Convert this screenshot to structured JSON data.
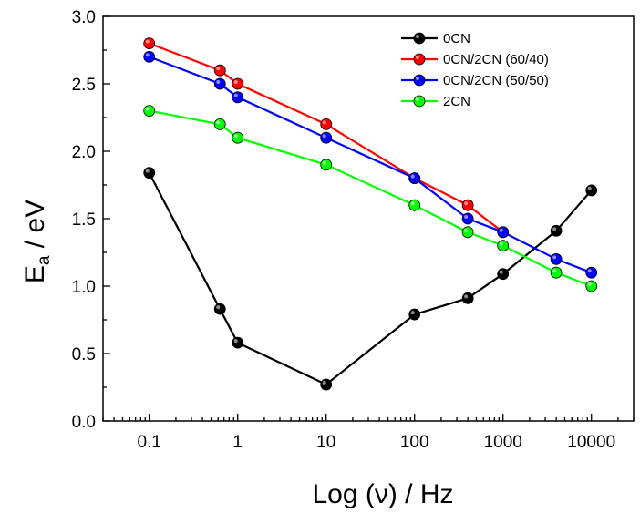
{
  "chart_data": {
    "type": "line",
    "xscale": "log",
    "xlim": [
      0.03,
      30000
    ],
    "ylim": [
      0.0,
      3.0
    ],
    "xticks": [
      {
        "value": 0.1,
        "label": "0.1"
      },
      {
        "value": 1,
        "label": "1"
      },
      {
        "value": 10,
        "label": "10"
      },
      {
        "value": 100,
        "label": "100"
      },
      {
        "value": 1000,
        "label": "1000"
      },
      {
        "value": 10000,
        "label": "10000"
      }
    ],
    "yticks": [
      {
        "value": 0.0,
        "label": "0.0"
      },
      {
        "value": 0.5,
        "label": "0.5"
      },
      {
        "value": 1.0,
        "label": "1.0"
      },
      {
        "value": 1.5,
        "label": "1.5"
      },
      {
        "value": 2.0,
        "label": "2.0"
      },
      {
        "value": 2.5,
        "label": "2.5"
      },
      {
        "value": 3.0,
        "label": "3.0"
      }
    ],
    "xlabel": "Log (ν) / Hz",
    "ylabel": {
      "main": "E",
      "sub": "a",
      "rest": " / eV"
    },
    "grid": false,
    "legend_position": "top-right",
    "series": [
      {
        "name": "0CN",
        "color": "#000000",
        "x": [
          0.1,
          0.63,
          1,
          10,
          100,
          400,
          1000,
          4000,
          10000
        ],
        "y": [
          1.84,
          0.83,
          0.58,
          0.27,
          0.79,
          0.91,
          1.09,
          1.41,
          1.71
        ]
      },
      {
        "name": "0CN/2CN (60/40)",
        "color": "#ff0000",
        "x": [
          0.1,
          0.63,
          1,
          10,
          100,
          400,
          1000
        ],
        "y": [
          2.8,
          2.6,
          2.5,
          2.2,
          1.8,
          1.6,
          1.4
        ]
      },
      {
        "name": "0CN/2CN (50/50)",
        "color": "#0000ff",
        "x": [
          0.1,
          0.63,
          1,
          10,
          100,
          400,
          1000,
          4000,
          10000
        ],
        "y": [
          2.7,
          2.5,
          2.4,
          2.1,
          1.8,
          1.5,
          1.4,
          1.2,
          1.1
        ]
      },
      {
        "name": "2CN",
        "color": "#00ff00",
        "x": [
          0.1,
          0.63,
          1,
          10,
          100,
          400,
          1000,
          4000,
          10000
        ],
        "y": [
          2.3,
          2.2,
          2.1,
          1.9,
          1.6,
          1.4,
          1.3,
          1.1,
          1.0
        ]
      }
    ]
  }
}
